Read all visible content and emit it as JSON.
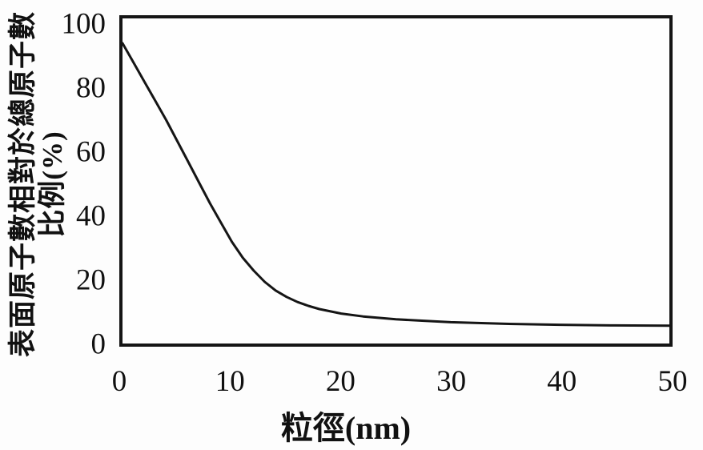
{
  "figure": {
    "background": "#fdfdfd",
    "ink_color": "#151515",
    "curve_color": "#151515"
  },
  "chart_data": {
    "type": "line",
    "title": "",
    "xlabel": "粒徑(nm)",
    "ylabel_line1": "表面原子數相對於總原子數",
    "ylabel_line2": "比例(%)",
    "xlim": [
      0,
      50
    ],
    "ylim": [
      0,
      100
    ],
    "x_ticks": [
      0,
      10,
      20,
      30,
      40,
      50
    ],
    "y_ticks": [
      0,
      20,
      40,
      60,
      80,
      100
    ],
    "grid": false,
    "legend": "none",
    "series": [
      {
        "name": "surface-atom-ratio-vs-particle-diameter",
        "x": [
          0,
          1,
          2,
          3,
          4,
          5,
          6,
          7,
          8,
          9,
          10,
          11,
          12,
          13,
          14,
          15,
          16,
          17,
          18,
          20,
          22,
          25,
          30,
          35,
          40,
          45,
          50
        ],
        "y": [
          94,
          88,
          82,
          76,
          70,
          63.5,
          57,
          50.5,
          44,
          38,
          32,
          27,
          23,
          19.5,
          16.8,
          14.8,
          13.2,
          12,
          11,
          9.6,
          8.7,
          7.8,
          6.9,
          6.4,
          6.1,
          5.9,
          5.8
        ]
      }
    ]
  }
}
